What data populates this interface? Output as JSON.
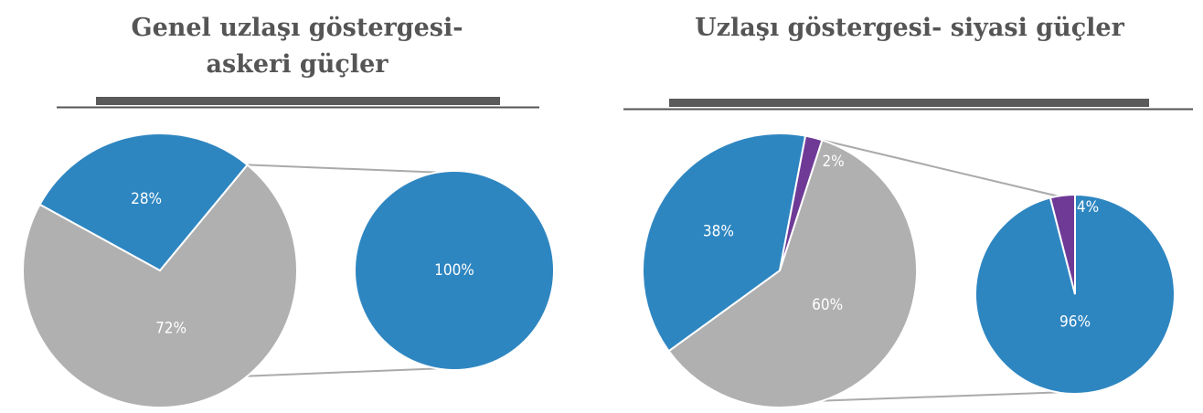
{
  "chart_data": [
    {
      "type": "pie",
      "title": "Genel uzlaşı göstergesi- askeri güçler",
      "values": [
        72,
        28
      ],
      "value_labels": [
        "72%",
        "28%"
      ],
      "colors": [
        "#b0b0b0",
        "#2e86c1"
      ],
      "secondary": {
        "values": [
          100
        ],
        "value_labels": [
          "100%"
        ],
        "colors": [
          "#2e86c1"
        ]
      }
    },
    {
      "type": "pie",
      "title": "Uzlaşı göstergesi- siyasi güçler",
      "values": [
        60,
        38,
        2
      ],
      "value_labels": [
        "60%",
        "38%",
        "2%"
      ],
      "colors": [
        "#b0b0b0",
        "#2e86c1",
        "#6e3a96"
      ],
      "secondary": {
        "values": [
          96,
          4
        ],
        "value_labels": [
          "96%",
          "4%"
        ],
        "colors": [
          "#2e86c1",
          "#6e3a96"
        ]
      }
    }
  ]
}
